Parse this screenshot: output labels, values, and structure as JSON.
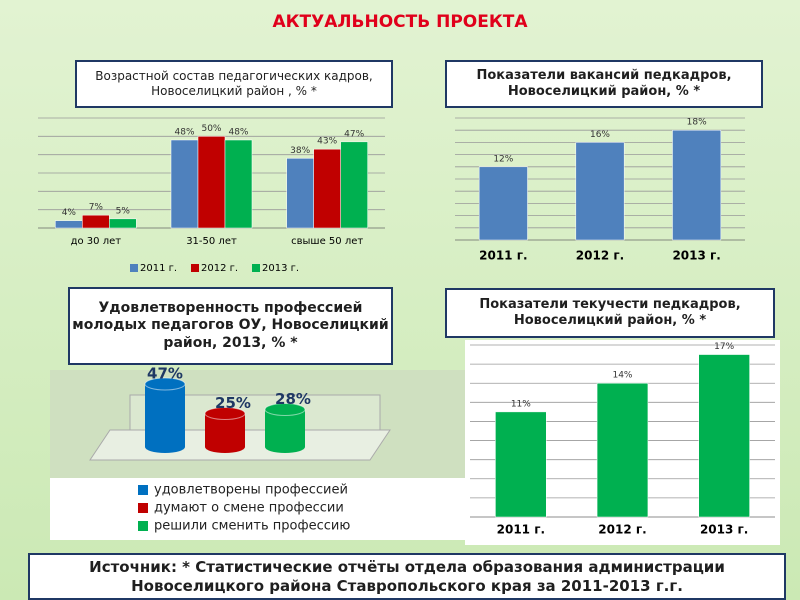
{
  "title": "АКТУАЛЬНОСТЬ  ПРОЕКТА",
  "source": "Источник: * Статистические отчёты отдела образования администрации Новоселицкого района  Ставропольского края за 2011-2013 г.г.",
  "chart_data": [
    {
      "type": "bar",
      "title": "Возрастной состав педагогических кадров, Новоселицкий район , %  *",
      "categories": [
        "до 30 лет",
        "31-50 лет",
        "свыше 50 лет"
      ],
      "series": [
        {
          "name": "2011 г.",
          "color": "#4f81bd",
          "values": [
            4,
            48,
            38
          ],
          "value_labels": [
            "4%",
            "48%",
            "38%"
          ]
        },
        {
          "name": "2012 г.",
          "color": "#c00000",
          "values": [
            7,
            50,
            43
          ],
          "value_labels": [
            "7%",
            "50%",
            "43%"
          ]
        },
        {
          "name": "2013 г.",
          "color": "#00b050",
          "values": [
            5,
            48,
            47
          ],
          "value_labels": [
            "5%",
            "48%",
            "47%"
          ]
        }
      ],
      "ylim": [
        0,
        60
      ],
      "yticks": [
        0,
        10,
        20,
        30,
        40,
        50,
        60
      ],
      "grid": true,
      "tick_labels": false,
      "legend": "bottom"
    },
    {
      "type": "bar",
      "title": "Показатели вакансий педкадров, Новоселицкий район, % *",
      "categories": [
        "2011 г.",
        "2012 г.",
        "2013 г."
      ],
      "values": [
        12,
        16,
        18
      ],
      "value_labels": [
        "12%",
        "16%",
        "18%"
      ],
      "color": "#4f81bd",
      "ylim": [
        0,
        20
      ],
      "yticks": [
        0,
        2,
        4,
        6,
        8,
        10,
        12,
        14,
        16,
        18,
        20
      ],
      "grid": true,
      "tick_labels": false
    },
    {
      "type": "bar3d",
      "title": "Удовлетворенность профессией молодых педагогов ОУ, Новоселицкий район, 2013, % *",
      "categories": [
        "удовлетворены профессией",
        "думают о смене профессии",
        "решили сменить профессию"
      ],
      "values": [
        47,
        25,
        28
      ],
      "value_labels": [
        "47%",
        "25%",
        "28%"
      ],
      "colors": [
        "#0070c0",
        "#c00000",
        "#00b050"
      ],
      "ylim": [
        0,
        50
      ],
      "legend": "bottom"
    },
    {
      "type": "bar",
      "title": "Показатели текучести педкадров, Новоселицкий район, % *",
      "categories": [
        "2011 г.",
        "2012 г.",
        "2013 г."
      ],
      "values": [
        11,
        14,
        17
      ],
      "value_labels": [
        "11%",
        "14%",
        "17%"
      ],
      "color": "#00b050",
      "ylim": [
        0,
        18
      ],
      "yticks": [
        0,
        2,
        4,
        6,
        8,
        10,
        12,
        14,
        16,
        18
      ],
      "grid": true,
      "tick_labels": false
    }
  ]
}
